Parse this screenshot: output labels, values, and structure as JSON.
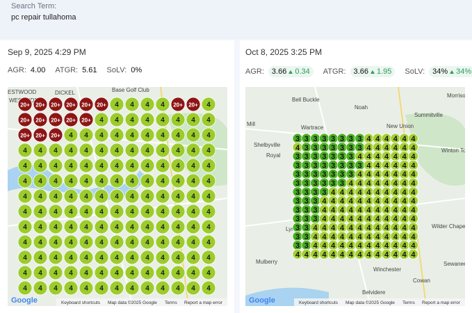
{
  "search": {
    "label": "Search Term:",
    "term": "pc repair tullahoma"
  },
  "panels": [
    {
      "date": "Sep 9, 2025 4:29 PM",
      "metrics": [
        {
          "label": "AGR:",
          "value": "4.00"
        },
        {
          "label": "ATGR:",
          "value": "5.61"
        },
        {
          "label": "SoLV:",
          "value": "0%"
        }
      ],
      "map": {
        "places": [
          "ESTWOOD",
          "DICKEL",
          "WESTSIDE",
          "Base Golf Club"
        ],
        "logo": "Google",
        "footer": [
          "Keyboard shortcuts",
          "Map data ©2025 Google",
          "Terms",
          "Report a map error"
        ],
        "grid": [
          [
            "20+",
            "20+",
            "20+",
            "20+",
            "20+",
            "20+",
            "4",
            "4",
            "4",
            "4",
            "20+",
            "20+",
            "4"
          ],
          [
            "20+",
            "20+",
            "20+",
            "20+",
            "20+",
            "4",
            "4",
            "4",
            "4",
            "4",
            "4",
            "4",
            "4"
          ],
          [
            "20+",
            "20+",
            "20+",
            "4",
            "4",
            "4",
            "4",
            "4",
            "4",
            "4",
            "4",
            "4",
            "4"
          ],
          [
            "4",
            "4",
            "4",
            "4",
            "4",
            "4",
            "4",
            "4",
            "4",
            "4",
            "4",
            "4",
            "4"
          ],
          [
            "4",
            "4",
            "4",
            "4",
            "4",
            "4",
            "4",
            "4",
            "4",
            "4",
            "4",
            "4",
            "4"
          ],
          [
            "4",
            "4",
            "4",
            "4",
            "4",
            "4",
            "4",
            "4",
            "4",
            "4",
            "4",
            "4",
            "4"
          ],
          [
            "4",
            "4",
            "4",
            "4",
            "4",
            "4",
            "4",
            "4",
            "4",
            "4",
            "4",
            "4",
            "4"
          ],
          [
            "4",
            "4",
            "4",
            "4",
            "4",
            "4",
            "4",
            "4",
            "4",
            "4",
            "4",
            "4",
            "4"
          ],
          [
            "4",
            "4",
            "4",
            "4",
            "4",
            "4",
            "4",
            "4",
            "4",
            "4",
            "4",
            "4",
            "4"
          ],
          [
            "4",
            "4",
            "4",
            "4",
            "4",
            "4",
            "4",
            "4",
            "4",
            "4",
            "4",
            "4",
            "4"
          ],
          [
            "4",
            "4",
            "4",
            "4",
            "4",
            "4",
            "4",
            "4",
            "4",
            "4",
            "4",
            "4",
            "4"
          ],
          [
            "4",
            "4",
            "4",
            "4",
            "4",
            "4",
            "4",
            "4",
            "4",
            "4",
            "4",
            "4",
            "4"
          ],
          [
            "4",
            "4",
            "4",
            "4",
            "4",
            "4",
            "4",
            "4",
            "4",
            "4",
            "4",
            "4",
            "4"
          ]
        ]
      }
    },
    {
      "date": "Oct 8, 2025 3:25 PM",
      "metrics": [
        {
          "label": "AGR:",
          "value": "3.66",
          "change": "0.34"
        },
        {
          "label": "ATGR:",
          "value": "3.66",
          "change": "1.95"
        },
        {
          "label": "SoLV:",
          "value": "34%",
          "change": "34%"
        }
      ],
      "map": {
        "places": [
          "Bell Buckle",
          "Noah",
          "Morrison",
          "Summitville",
          "Wartrace",
          "New Union",
          "Shelbyville",
          "Royal",
          "Mill",
          "Winton To",
          "Wilder Chapel",
          "Mulberry",
          "Winchester",
          "Sewanee",
          "Cowan",
          "Belvidere",
          "Lyn"
        ],
        "logo": "Google",
        "footer": [
          "Keyboard shortcuts",
          "Map data ©2025 Google",
          "Terms",
          "Report a map error"
        ],
        "grid": [
          [
            "3",
            "3",
            "3",
            "3",
            "3",
            "3",
            "3",
            "3",
            "4",
            "4",
            "4",
            "4",
            "4",
            "4"
          ],
          [
            "4",
            "3",
            "3",
            "3",
            "3",
            "3",
            "3",
            "3",
            "4",
            "4",
            "4",
            "4",
            "4",
            "4"
          ],
          [
            "3",
            "3",
            "3",
            "3",
            "3",
            "3",
            "3",
            "4",
            "4",
            "4",
            "4",
            "4",
            "4",
            "4"
          ],
          [
            "3",
            "3",
            "3",
            "3",
            "3",
            "3",
            "3",
            "3",
            "4",
            "4",
            "4",
            "4",
            "4",
            "4"
          ],
          [
            "3",
            "3",
            "3",
            "3",
            "3",
            "3",
            "3",
            "4",
            "4",
            "4",
            "4",
            "4",
            "4",
            "4"
          ],
          [
            "3",
            "3",
            "3",
            "3",
            "3",
            "3",
            "4",
            "4",
            "4",
            "4",
            "4",
            "4",
            "4",
            "4"
          ],
          [
            "3",
            "3",
            "3",
            "3",
            "4",
            "4",
            "4",
            "4",
            "4",
            "4",
            "4",
            "4",
            "4",
            "4"
          ],
          [
            "3",
            "3",
            "3",
            "4",
            "4",
            "4",
            "4",
            "4",
            "4",
            "4",
            "4",
            "4",
            "4",
            "4"
          ],
          [
            "3",
            "3",
            "3",
            "4",
            "4",
            "4",
            "4",
            "4",
            "4",
            "4",
            "4",
            "4",
            "4",
            "4"
          ],
          [
            "3",
            "3",
            "3",
            "4",
            "4",
            "4",
            "4",
            "4",
            "4",
            "4",
            "4",
            "4",
            "4",
            "4"
          ],
          [
            "3",
            "3",
            "4",
            "4",
            "4",
            "4",
            "4",
            "4",
            "4",
            "4",
            "4",
            "4",
            "4",
            "4"
          ],
          [
            "3",
            "3",
            "4",
            "4",
            "4",
            "4",
            "4",
            "4",
            "4",
            "4",
            "4",
            "4",
            "4",
            "4"
          ],
          [
            "3",
            "3",
            "4",
            "4",
            "4",
            "4",
            "4",
            "4",
            "4",
            "4",
            "4",
            "4",
            "4",
            "4"
          ],
          [
            "4",
            "4",
            "4",
            "4",
            "4",
            "4",
            "4",
            "4",
            "4",
            "4",
            "4",
            "4",
            "4",
            "4"
          ]
        ]
      }
    }
  ]
}
